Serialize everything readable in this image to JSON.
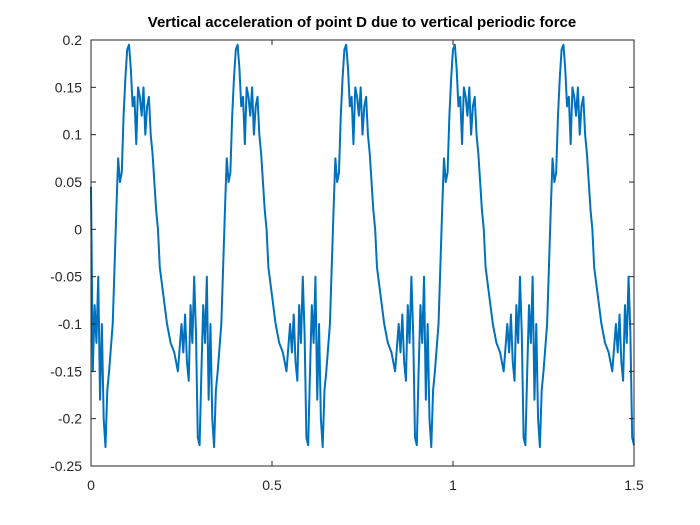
{
  "colors": {
    "background": "#ffffff",
    "axes": "#262626",
    "series_line": "#0072BD"
  },
  "chart_data": {
    "type": "line",
    "title": "Vertical acceleration of point D due to vertical periodic force",
    "xlabel": "",
    "ylabel": "",
    "xlim": [
      0,
      1.5
    ],
    "ylim": [
      -0.25,
      0.2
    ],
    "xticks": [
      0,
      0.5,
      1,
      1.5
    ],
    "xtick_labels": [
      "0",
      "0.5",
      "1",
      "1.5"
    ],
    "yticks": [
      -0.25,
      -0.2,
      -0.15,
      -0.1,
      -0.05,
      0,
      0.05,
      0.1,
      0.15,
      0.2
    ],
    "ytick_labels": [
      "-0.25",
      "-0.2",
      "-0.15",
      "-0.1",
      "-0.05",
      "0",
      "0.05",
      "0.1",
      "0.15",
      "0.2"
    ],
    "grid": false,
    "legend": "none",
    "period": 0.3,
    "series": [
      {
        "x": [
          0,
          0.005,
          0.01,
          0.015,
          0.02,
          0.025,
          0.03,
          0.035,
          0.04,
          0.045,
          0.05,
          0.06,
          0.07,
          0.075,
          0.08,
          0.085,
          0.09,
          0.095,
          0.1,
          0.105,
          0.11,
          0.115,
          0.12,
          0.125,
          0.13,
          0.135,
          0.14,
          0.145,
          0.15,
          0.155,
          0.16,
          0.165,
          0.17,
          0.175,
          0.18,
          0.185,
          0.19,
          0.2,
          0.21,
          0.22,
          0.23,
          0.24,
          0.25,
          0.255,
          0.26,
          0.265,
          0.27,
          0.275,
          0.28,
          0.285,
          0.29,
          0.295,
          0.3
        ],
        "y": [
          0.045,
          -0.15,
          -0.08,
          -0.12,
          -0.05,
          -0.18,
          -0.1,
          -0.2,
          -0.23,
          -0.17,
          -0.15,
          -0.1,
          0.02,
          0.075,
          0.05,
          0.06,
          0.12,
          0.16,
          0.19,
          0.195,
          0.17,
          0.13,
          0.14,
          0.09,
          0.15,
          0.14,
          0.12,
          0.15,
          0.1,
          0.13,
          0.14,
          0.1,
          0.08,
          0.05,
          0.02,
          0,
          -0.04,
          -0.07,
          -0.1,
          -0.12,
          -0.13,
          -0.15,
          -0.1,
          -0.13,
          -0.09,
          -0.14,
          -0.16,
          -0.08,
          -0.12,
          -0.05,
          -0.11,
          -0.22,
          -0.228
        ]
      }
    ]
  }
}
